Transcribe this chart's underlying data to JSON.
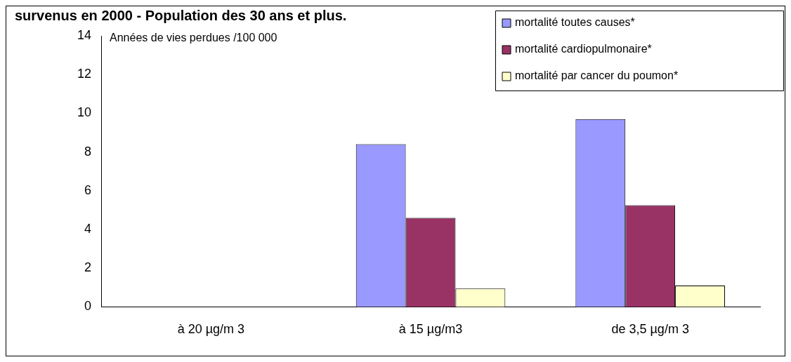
{
  "chart_data": {
    "type": "bar",
    "title": "survenus en 2000 - Population des 30 ans et plus.",
    "ylabel": "Années de vies perdues /100 000",
    "categories": [
      "à 20 µg/m 3",
      "à 15 µg/m3",
      "de 3,5 µg/m 3"
    ],
    "series": [
      {
        "name": "mortalité toutes causes*",
        "color": "#9999ff",
        "values": [
          null,
          8.4,
          9.7
        ]
      },
      {
        "name": "mortalité cardiopulmonaire*",
        "color": "#993366",
        "values": [
          null,
          4.6,
          5.25
        ]
      },
      {
        "name": "mortalité par cancer du poumon*",
        "color": "#ffffcc",
        "values": [
          null,
          0.95,
          1.1
        ]
      }
    ],
    "ylim": [
      0,
      14
    ],
    "yticks": [
      0,
      2,
      4,
      6,
      8,
      10,
      12,
      14
    ],
    "grid": false,
    "legend": "top right"
  }
}
